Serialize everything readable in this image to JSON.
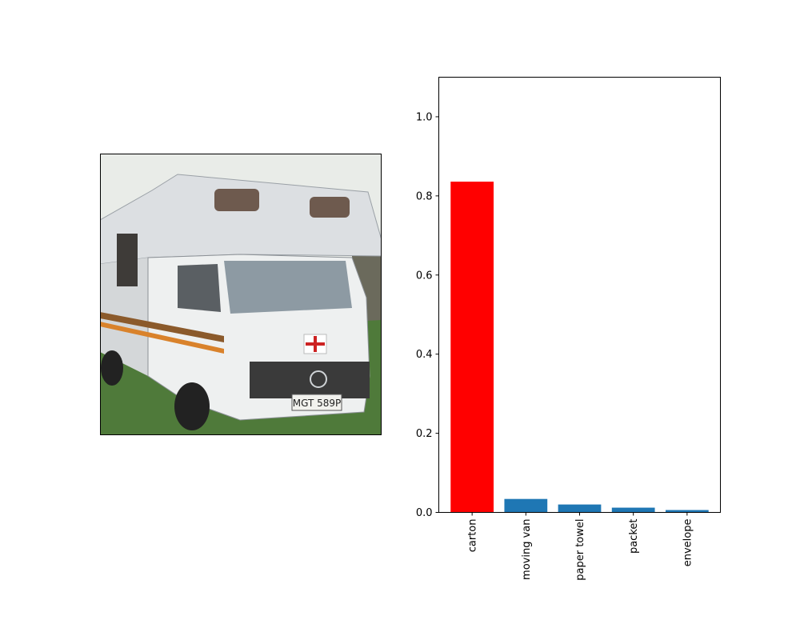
{
  "image_panel": {
    "photo_subject": "white motorhome camper van",
    "plate_text": "MGT 589P"
  },
  "colors": {
    "highlight_bar": "#ff0000",
    "default_bar": "#1f77b4",
    "axis": "#000000"
  },
  "chart_data": {
    "type": "bar",
    "categories": [
      "carton",
      "moving van",
      "paper towel",
      "packet",
      "envelope"
    ],
    "values": [
      0.836,
      0.034,
      0.02,
      0.012,
      0.006
    ],
    "highlight_index": 0,
    "title": "",
    "xlabel": "",
    "ylabel": "",
    "ylim": [
      0,
      1.1
    ],
    "yticks": [
      0.0,
      0.2,
      0.4,
      0.6,
      0.8,
      1.0
    ],
    "ytick_labels": [
      "0.0",
      "0.2",
      "0.4",
      "0.6",
      "0.8",
      "1.0"
    ],
    "grid": false,
    "legend": "none"
  }
}
